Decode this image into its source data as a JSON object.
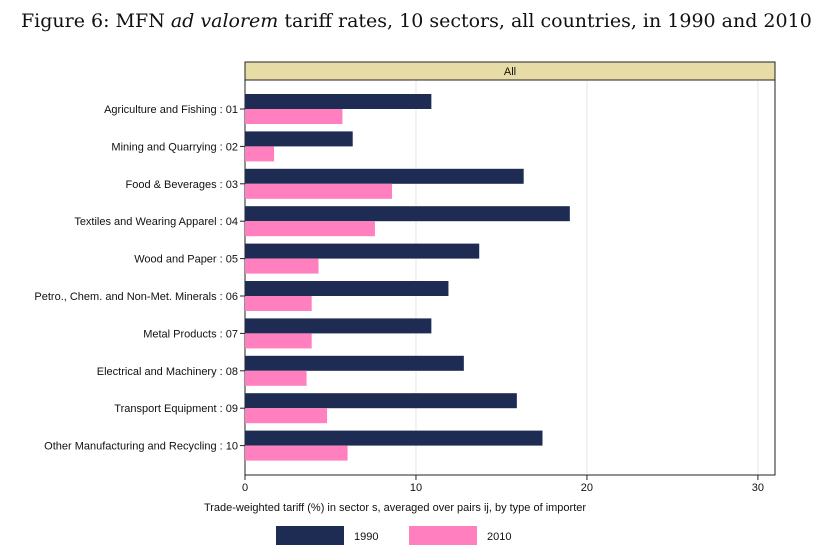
{
  "figure": {
    "title_prefix": "Figure 6: MFN ",
    "title_emph": "ad valorem",
    "title_suffix": " tariff rates, 10 sectors, all countries, in 1990 and 2010"
  },
  "chart_data": {
    "type": "bar",
    "orientation": "horizontal",
    "panel_label": "All",
    "categories": [
      "Agriculture and Fishing : 01",
      "Mining and Quarrying : 02",
      "Food & Beverages : 03",
      "Textiles and Wearing Apparel : 04",
      "Wood and Paper : 05",
      "Petro., Chem. and Non-Met. Minerals : 06",
      "Metal Products : 07",
      "Electrical and Machinery : 08",
      "Transport Equipment : 09",
      "Other Manufacturing and Recycling : 10"
    ],
    "series": [
      {
        "name": "1990",
        "color": "#1e2b52",
        "values": [
          10.9,
          6.3,
          16.3,
          19.0,
          13.7,
          11.9,
          10.9,
          12.8,
          15.9,
          17.4
        ]
      },
      {
        "name": "2010",
        "color": "#ff7fbf",
        "values": [
          5.7,
          1.7,
          8.6,
          7.6,
          4.3,
          3.9,
          3.9,
          3.6,
          4.8,
          6.0
        ]
      }
    ],
    "xlabel": "Trade-weighted tariff (%) in sector s, averaged over pairs ij, by type of importer",
    "xlim": [
      0,
      31
    ],
    "xticks": [
      0,
      10,
      20,
      30
    ],
    "grid": true,
    "legend_position": "bottom"
  }
}
